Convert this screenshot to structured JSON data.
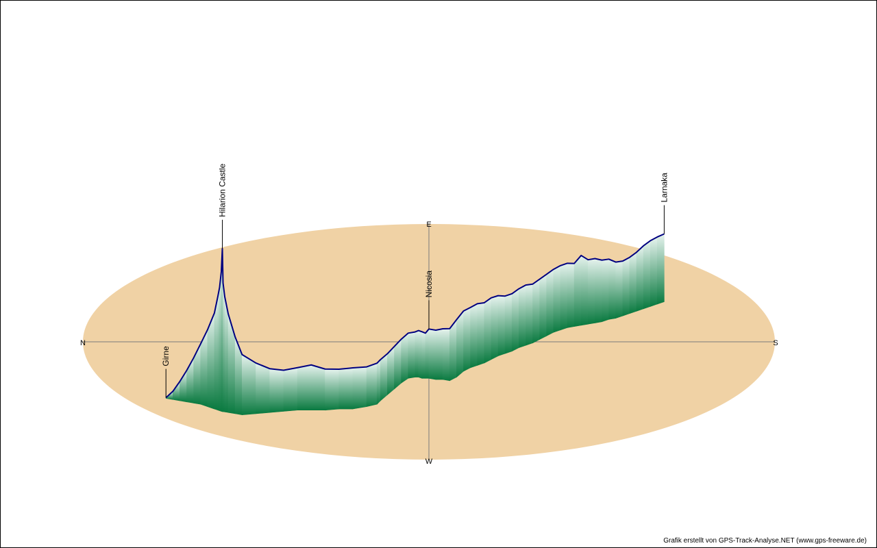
{
  "credit": "Grafik erstellt von GPS-Track-Analyse.NET (www.gps-freeware.de)",
  "colors": {
    "ground": "#f0d2a5",
    "axis": "#7a7a7a",
    "track": "#000080",
    "curtain_dark": "#0a7a40",
    "curtain_light": "#e6f3ee",
    "label_line": "#000000"
  },
  "chart_data": {
    "type": "area",
    "title": "",
    "compass": {
      "north": "N",
      "east": "E",
      "south": "S",
      "west": "W"
    },
    "places": [
      {
        "name": "Girne",
        "index": 0
      },
      {
        "name": "Hilarion Castle",
        "index": 11
      },
      {
        "name": "Nicosia",
        "index": 36
      },
      {
        "name": "Larnaka",
        "index": 70
      }
    ],
    "track": [
      [
        -0.76,
        -0.48,
        5
      ],
      [
        -0.74,
        -0.49,
        60
      ],
      [
        -0.72,
        -0.5,
        140
      ],
      [
        -0.7,
        -0.51,
        230
      ],
      [
        -0.68,
        -0.52,
        330
      ],
      [
        -0.66,
        -0.53,
        440
      ],
      [
        -0.64,
        -0.55,
        560
      ],
      [
        -0.62,
        -0.57,
        700
      ],
      [
        -0.61,
        -0.58,
        830
      ],
      [
        -0.605,
        -0.585,
        900
      ],
      [
        -0.6,
        -0.59,
        1020
      ],
      [
        -0.597,
        -0.592,
        1190
      ],
      [
        -0.595,
        -0.593,
        940
      ],
      [
        -0.59,
        -0.595,
        840
      ],
      [
        -0.58,
        -0.6,
        720
      ],
      [
        -0.56,
        -0.61,
        560
      ],
      [
        -0.54,
        -0.62,
        440
      ],
      [
        -0.5,
        -0.61,
        370
      ],
      [
        -0.46,
        -0.6,
        320
      ],
      [
        -0.42,
        -0.59,
        300
      ],
      [
        -0.38,
        -0.58,
        310
      ],
      [
        -0.34,
        -0.58,
        330
      ],
      [
        -0.3,
        -0.58,
        300
      ],
      [
        -0.26,
        -0.57,
        290
      ],
      [
        -0.22,
        -0.57,
        300
      ],
      [
        -0.18,
        -0.55,
        290
      ],
      [
        -0.15,
        -0.53,
        300
      ],
      [
        -0.14,
        -0.5,
        300
      ],
      [
        -0.12,
        -0.45,
        300
      ],
      [
        -0.1,
        -0.4,
        310
      ],
      [
        -0.08,
        -0.35,
        320
      ],
      [
        -0.06,
        -0.31,
        330
      ],
      [
        -0.04,
        -0.3,
        330
      ],
      [
        -0.03,
        -0.3,
        340
      ],
      [
        -0.02,
        -0.31,
        340
      ],
      [
        -0.01,
        -0.31,
        330
      ],
      [
        0.0,
        -0.31,
        360
      ],
      [
        0.02,
        -0.32,
        360
      ],
      [
        0.04,
        -0.32,
        370
      ],
      [
        0.06,
        -0.33,
        380
      ],
      [
        0.08,
        -0.3,
        420
      ],
      [
        0.1,
        -0.25,
        440
      ],
      [
        0.12,
        -0.22,
        440
      ],
      [
        0.14,
        -0.2,
        450
      ],
      [
        0.16,
        -0.18,
        440
      ],
      [
        0.18,
        -0.15,
        450
      ],
      [
        0.2,
        -0.12,
        440
      ],
      [
        0.22,
        -0.1,
        420
      ],
      [
        0.24,
        -0.08,
        420
      ],
      [
        0.26,
        -0.05,
        430
      ],
      [
        0.28,
        -0.03,
        440
      ],
      [
        0.3,
        -0.01,
        430
      ],
      [
        0.32,
        0.02,
        440
      ],
      [
        0.34,
        0.05,
        450
      ],
      [
        0.36,
        0.08,
        460
      ],
      [
        0.38,
        0.1,
        470
      ],
      [
        0.4,
        0.12,
        470
      ],
      [
        0.42,
        0.13,
        460
      ],
      [
        0.44,
        0.14,
        510
      ],
      [
        0.46,
        0.15,
        470
      ],
      [
        0.48,
        0.16,
        470
      ],
      [
        0.5,
        0.17,
        450
      ],
      [
        0.52,
        0.19,
        440
      ],
      [
        0.54,
        0.2,
        410
      ],
      [
        0.56,
        0.22,
        400
      ],
      [
        0.58,
        0.24,
        410
      ],
      [
        0.6,
        0.26,
        430
      ],
      [
        0.62,
        0.28,
        460
      ],
      [
        0.64,
        0.3,
        480
      ],
      [
        0.66,
        0.32,
        490
      ],
      [
        0.68,
        0.34,
        495
      ]
    ]
  }
}
